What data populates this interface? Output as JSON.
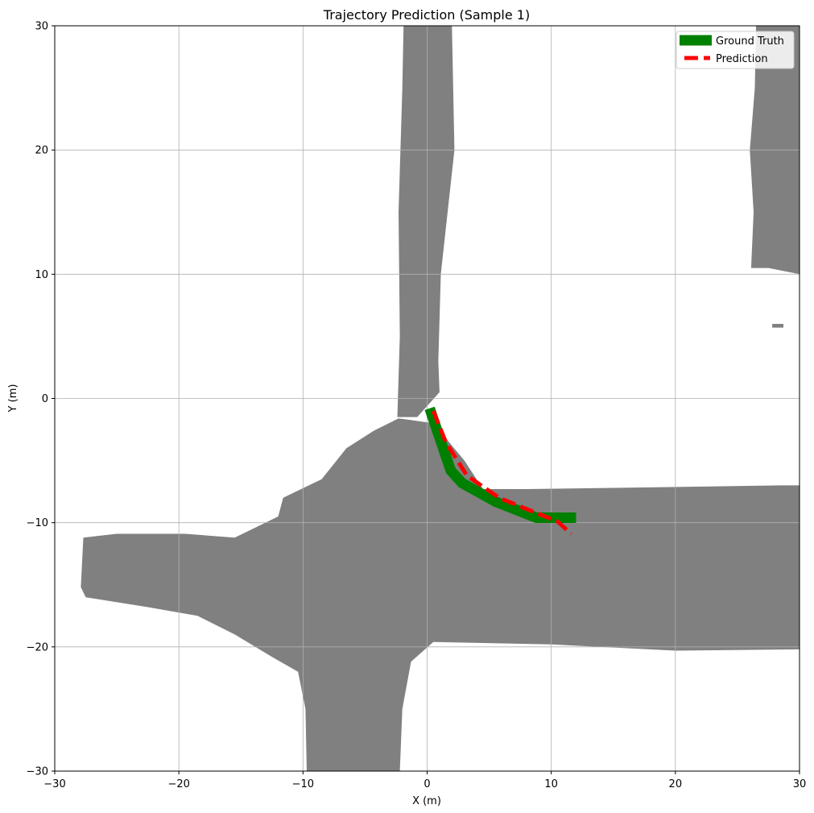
{
  "chart_data": {
    "type": "line",
    "title": "Trajectory Prediction (Sample 1)",
    "xlabel": "X (m)",
    "ylabel": "Y (m)",
    "xlim": [
      -30,
      30
    ],
    "ylim": [
      -30,
      30
    ],
    "xticks": [
      -30,
      -20,
      -10,
      0,
      10,
      20,
      30
    ],
    "yticks": [
      -30,
      -20,
      -10,
      0,
      10,
      20,
      30
    ],
    "xtick_labels": [
      "−30",
      "−20",
      "−10",
      "0",
      "10",
      "20",
      "30"
    ],
    "ytick_labels": [
      "−30",
      "−20",
      "−10",
      "0",
      "10",
      "20",
      "30"
    ],
    "grid": true,
    "legend_position": "top-right",
    "background_map": {
      "drivable_color": "#808080",
      "regions": [
        {
          "name": "north-road",
          "polygon": [
            [
              -1.9,
              30
            ],
            [
              2.0,
              30
            ],
            [
              2.2,
              20
            ],
            [
              1.1,
              10
            ],
            [
              0.9,
              3
            ],
            [
              1.0,
              0.5
            ],
            [
              -0.8,
              -1.5
            ],
            [
              -2.4,
              -1.5
            ],
            [
              -2.2,
              5
            ],
            [
              -2.3,
              15
            ],
            [
              -2.0,
              25
            ]
          ]
        },
        {
          "name": "junction-and-west-road",
          "polygon": [
            [
              -2.3,
              -1.6
            ],
            [
              0.5,
              -2
            ],
            [
              3.0,
              -5.0
            ],
            [
              4.5,
              -7.3
            ],
            [
              8.0,
              -7.3
            ],
            [
              15.0,
              -7.2
            ],
            [
              28.5,
              -7.0
            ],
            [
              30,
              -7.0
            ],
            [
              30,
              -20.2
            ],
            [
              20.0,
              -20.3
            ],
            [
              10.0,
              -19.8
            ],
            [
              0.5,
              -19.6
            ],
            [
              -1.3,
              -21.2
            ],
            [
              -2.0,
              -25.0
            ],
            [
              -2.2,
              -30
            ],
            [
              -9.7,
              -30
            ],
            [
              -9.8,
              -25.0
            ],
            [
              -10.4,
              -22.0
            ],
            [
              -12.5,
              -20.8
            ],
            [
              -15.5,
              -19.0
            ],
            [
              -18.5,
              -17.5
            ],
            [
              -22.5,
              -16.8
            ],
            [
              -27.5,
              -16.0
            ],
            [
              -27.9,
              -15.2
            ],
            [
              -27.7,
              -11.2
            ],
            [
              -25.0,
              -10.9
            ],
            [
              -19.5,
              -10.9
            ],
            [
              -15.5,
              -11.2
            ],
            [
              -12.0,
              -9.5
            ],
            [
              -11.6,
              -8.0
            ],
            [
              -8.5,
              -6.5
            ],
            [
              -6.5,
              -4.0
            ],
            [
              -4.3,
              -2.6
            ]
          ]
        },
        {
          "name": "east-road",
          "polygon": [
            [
              26.5,
              30
            ],
            [
              30,
              30
            ],
            [
              30,
              10
            ],
            [
              27.5,
              10.5
            ],
            [
              26.1,
              10.5
            ],
            [
              26.3,
              15.0
            ],
            [
              26.0,
              20.0
            ],
            [
              26.4,
              25.0
            ]
          ]
        },
        {
          "name": "small-patch",
          "polygon": [
            [
              27.8,
              5.7
            ],
            [
              28.7,
              5.7
            ],
            [
              28.7,
              6.0
            ],
            [
              27.8,
              6.0
            ]
          ]
        }
      ]
    },
    "series": [
      {
        "name": "Ground Truth",
        "color": "#008000",
        "style": "solid",
        "x": [
          0.2,
          1.9,
          2.8,
          5.5,
          8.8,
          12.0
        ],
        "y": [
          -0.8,
          -5.8,
          -6.8,
          -8.3,
          -9.6,
          -9.6
        ]
      },
      {
        "name": "Prediction",
        "color": "#ff0000",
        "style": "dashed",
        "x": [
          0.5,
          1.5,
          3.2,
          5.8,
          8.5,
          10.5,
          11.6
        ],
        "y": [
          -1.0,
          -3.5,
          -6.2,
          -8.0,
          -9.1,
          -9.9,
          -10.9
        ]
      }
    ]
  }
}
